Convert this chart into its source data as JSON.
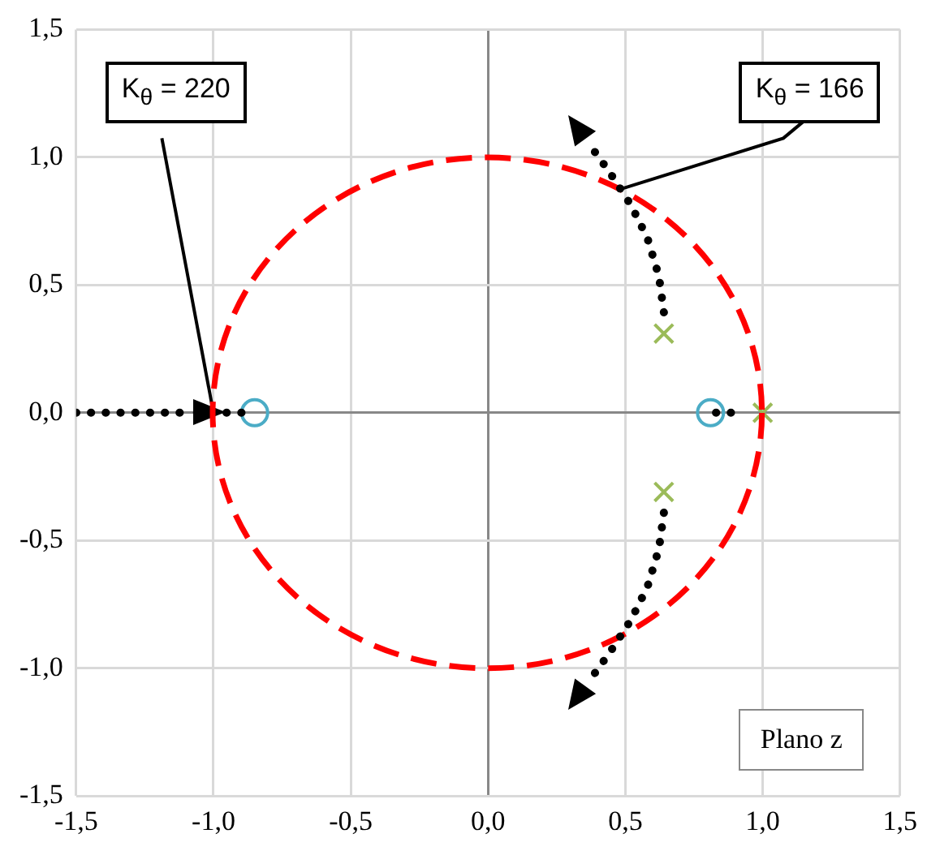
{
  "chart_data": {
    "type": "scatter",
    "xlim": [
      -1.5,
      1.5
    ],
    "ylim": [
      -1.5,
      1.5
    ],
    "xticks": [
      {
        "value": -1.5,
        "label": "-1,5"
      },
      {
        "value": -1,
        "label": "-1,0"
      },
      {
        "value": -0.5,
        "label": "-0,5"
      },
      {
        "value": 0,
        "label": "0,0"
      },
      {
        "value": 0.5,
        "label": "0,5"
      },
      {
        "value": 1,
        "label": "1,0"
      },
      {
        "value": 1.5,
        "label": "1,5"
      }
    ],
    "yticks": [
      {
        "value": -1.5,
        "label": "-1,5"
      },
      {
        "value": -1,
        "label": "-1,0"
      },
      {
        "value": -0.5,
        "label": "-0,5"
      },
      {
        "value": 0,
        "label": "0,0"
      },
      {
        "value": 0.5,
        "label": "0,5"
      },
      {
        "value": 1,
        "label": "1,0"
      },
      {
        "value": 1.5,
        "label": "1,5"
      }
    ],
    "grid": true,
    "legend": false,
    "series": [
      {
        "type": "line",
        "line_style": "dotted",
        "marker": "none",
        "color": "#000000",
        "x": [
          -1.5,
          -1.42,
          -1.35,
          -1.28,
          -1.1
        ],
        "values": [
          0,
          0,
          0,
          0,
          0
        ]
      },
      {
        "type": "line",
        "line_style": "dotted",
        "marker": "none",
        "color": "#000000",
        "x": [
          -1.06,
          -0.92,
          -0.85
        ],
        "values": [
          0,
          0,
          0
        ]
      },
      {
        "type": "line",
        "line_style": "dotted",
        "marker": "none",
        "color": "#000000",
        "x": [
          0.83,
          0.93
        ],
        "values": [
          0,
          0
        ]
      },
      {
        "type": "scatter",
        "marker": "cross",
        "color": "#9bbb59",
        "x": [
          0.64,
          0.64,
          1.0
        ],
        "values": [
          0.31,
          -0.31,
          0
        ]
      },
      {
        "type": "scatter",
        "marker": "circle",
        "color": "#4bacc6",
        "x": [
          -0.85,
          0.81
        ],
        "values": [
          0,
          0
        ]
      }
    ],
    "annotations": [
      {
        "text": "K$_{θ}$ = 220",
        "x": -1.0,
        "y": 0
      },
      "K$_{θ}$ = 166",
      "Plano z"
    ]
  }
}
